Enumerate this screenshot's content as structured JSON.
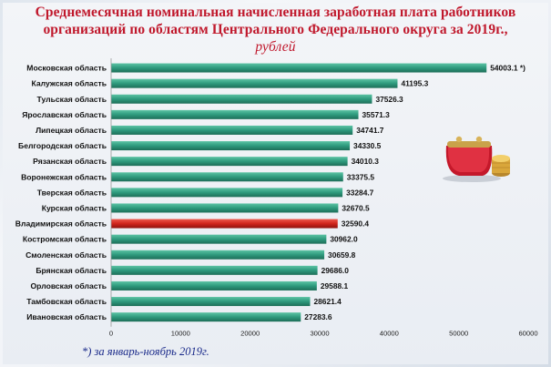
{
  "title": {
    "main": "Среднемесячная номинальная начисленная заработная плата работников организаций по областям Центрального Федерального округа за 2019г.,",
    "unit": "рублей"
  },
  "footnote": "*) за январь-ноябрь 2019г.",
  "colors": {
    "bar": "#2e9a7d",
    "highlight": "#d0241c",
    "title": "#c0182c"
  },
  "illustration": "wallet-with-coins-icon",
  "chart_data": {
    "type": "bar",
    "orientation": "horizontal",
    "categories": [
      "Московская область",
      "Калужская область",
      "Тульская область",
      "Ярославская область",
      "Липецкая область",
      "Белгородская область",
      "Рязанская область",
      "Воронежская область",
      "Тверская область",
      "Курская область",
      "Владимирская область",
      "Костромская область",
      "Смоленская область",
      "Брянская область",
      "Орловская область",
      "Тамбовская область",
      "Ивановская область"
    ],
    "values": [
      54003.1,
      41195.3,
      37526.3,
      35571.3,
      34741.7,
      34330.5,
      34010.3,
      33375.5,
      33284.7,
      32670.5,
      32590.4,
      30962.0,
      30659.8,
      29686.0,
      29588.1,
      28621.4,
      27283.6
    ],
    "value_labels": [
      "54003.1 *)",
      "41195.3",
      "37526.3",
      "35571.3",
      "34741.7",
      "34330.5",
      "34010.3",
      "33375.5",
      "33284.7",
      "32670.5",
      "32590.4",
      "30962.0",
      "30659.8",
      "29686.0",
      "29588.1",
      "28621.4",
      "27283.6"
    ],
    "highlight_category": "Владимирская область",
    "xlim": [
      0,
      60000
    ],
    "xticks": [
      0,
      10000,
      20000,
      30000,
      40000,
      50000,
      60000
    ],
    "grid": false,
    "legend": "none"
  }
}
